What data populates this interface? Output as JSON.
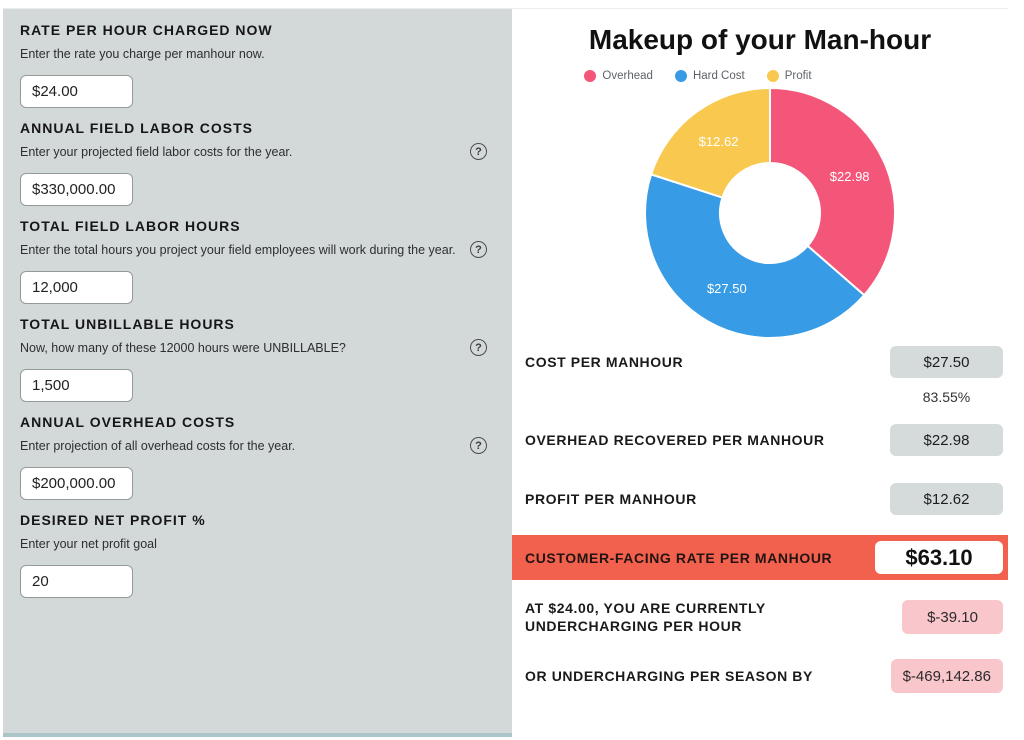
{
  "left_panel": {
    "help_icon_glyph": "?",
    "fields": [
      {
        "label": "RATE PER HOUR CHARGED NOW",
        "description": "Enter the rate you charge per manhour now.",
        "value": "$24.00",
        "has_help": false
      },
      {
        "label": "ANNUAL FIELD LABOR COSTS",
        "description": "Enter your projected field labor costs for the year.",
        "value": "$330,000.00",
        "has_help": true
      },
      {
        "label": "TOTAL FIELD LABOR HOURS",
        "description": "Enter the total hours you project your field employees will work during the year.",
        "value": "12,000",
        "has_help": true
      },
      {
        "label": "TOTAL UNBILLABLE HOURS",
        "description": "Now, how many of these 12000 hours were UNBILLABLE?",
        "value": "1,500",
        "has_help": true
      },
      {
        "label": "ANNUAL OVERHEAD COSTS",
        "description": "Enter projection of all overhead costs for the year.",
        "value": "$200,000.00",
        "has_help": true
      },
      {
        "label": "DESIRED NET PROFIT %",
        "description": "Enter your net profit goal",
        "value": "20",
        "has_help": false
      }
    ]
  },
  "chart_data": {
    "type": "pie",
    "donut": true,
    "title": "Makeup of your Man-hour",
    "labels": [
      "Overhead",
      "Hard Cost",
      "Profit"
    ],
    "values": [
      22.98,
      27.5,
      12.62
    ],
    "value_labels": [
      "$22.98",
      "$27.50",
      "$12.62"
    ],
    "colors": [
      "#F4567A",
      "#379BE6",
      "#F9C84F"
    ],
    "start_angle_deg": 0,
    "direction": "clockwise",
    "inner_radius_ratio": 0.4,
    "legend_position": "top"
  },
  "results": {
    "rows": [
      {
        "label": "COST PER MANHOUR",
        "value": "$27.50",
        "sub_value": "83.55%"
      },
      {
        "label": "OVERHEAD RECOVERED PER MANHOUR",
        "value": "$22.98"
      },
      {
        "label": "PROFIT PER MANHOUR",
        "value": "$12.62"
      },
      {
        "label": "CUSTOMER-FACING RATE PER MANHOUR",
        "value": "$63.10"
      },
      {
        "label": "AT $24.00, YOU ARE CURRENTLY UNDERCHARGING PER HOUR",
        "value": "$-39.10"
      },
      {
        "label": "OR UNDERCHARGING PER SEASON BY",
        "value": "$-469,142.86"
      }
    ]
  },
  "colors": {
    "left_panel_bg": "#d3d9d9",
    "highlight_bar": "#f2614e",
    "gray_badge": "#d5dbdb",
    "pink_badge": "#f9c6cc",
    "overhead": "#F4567A",
    "hard_cost": "#379BE6",
    "profit": "#F9C84F"
  }
}
